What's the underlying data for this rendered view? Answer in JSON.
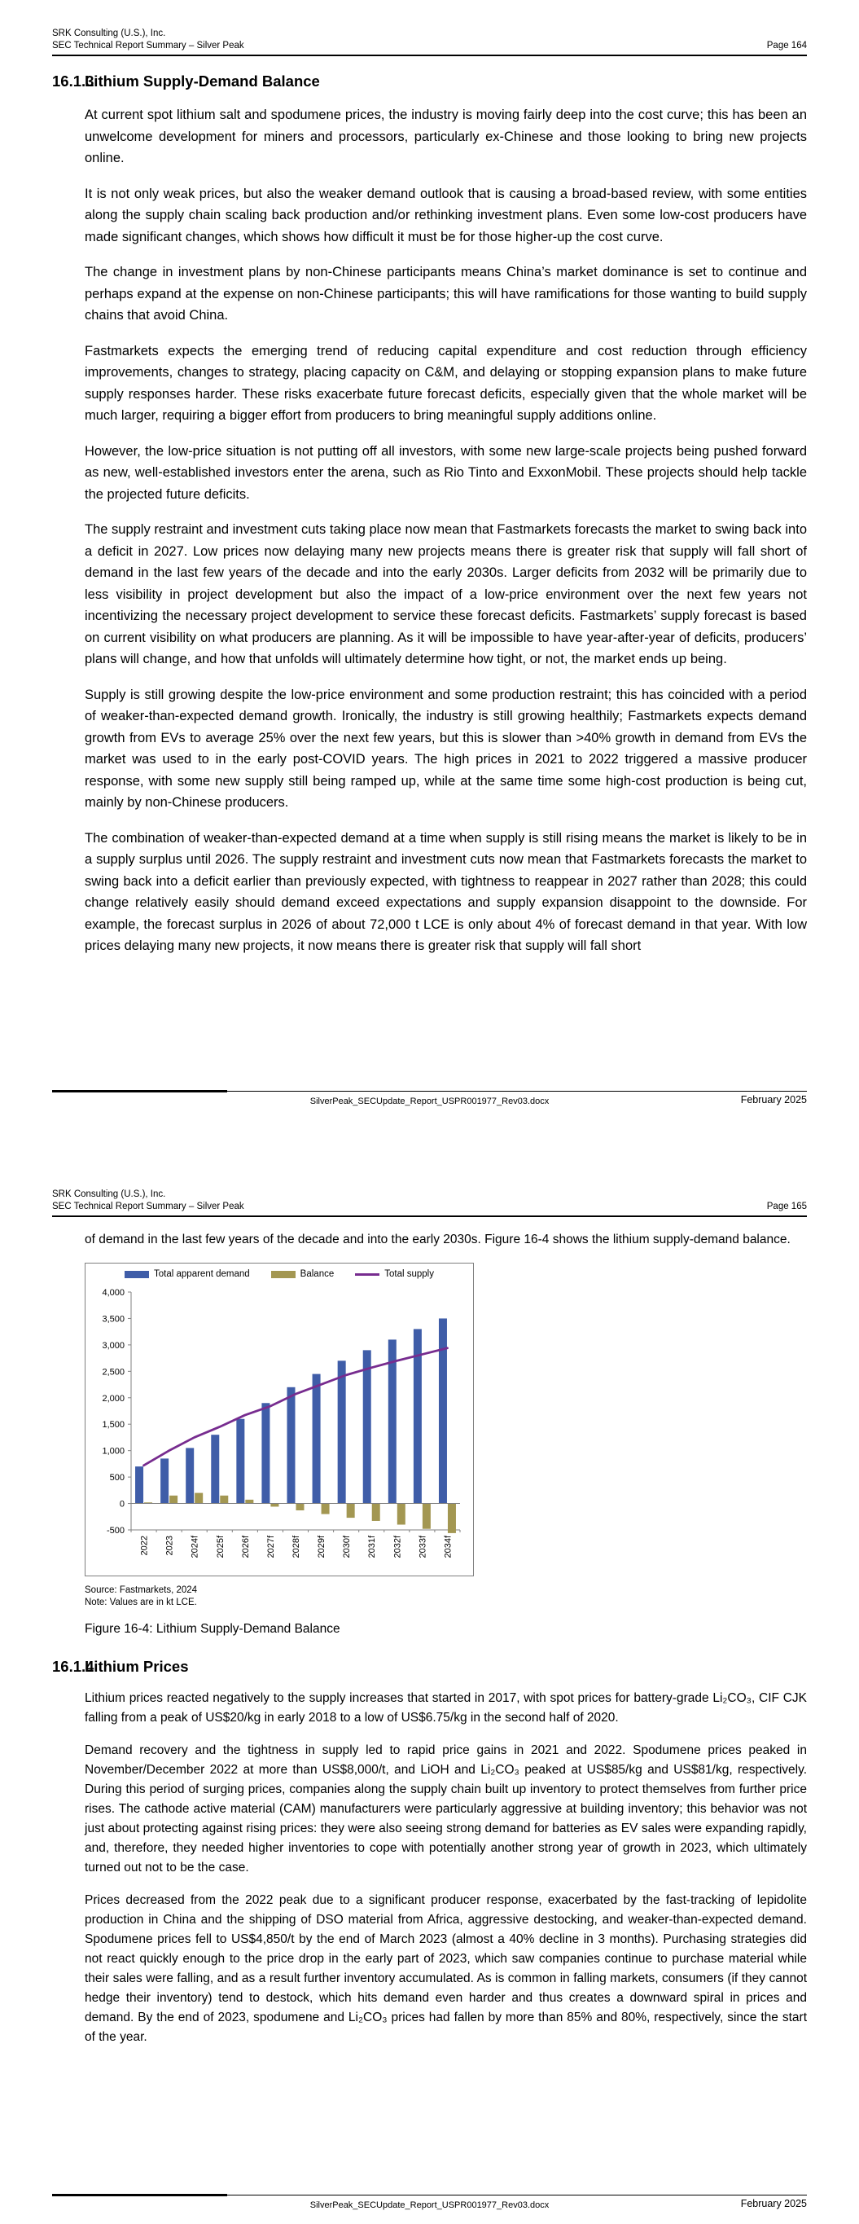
{
  "doc": {
    "header": {
      "company": "SRK Consulting (U.S.), Inc.",
      "report": "SEC Technical Report Summary – Silver Peak"
    },
    "footer": {
      "filename": "SilverPeak_SECUpdate_Report_USPR001977_Rev03.docx",
      "date": "February 2025"
    }
  },
  "page164": {
    "page_label": "Page 164",
    "section": {
      "number": "16.1.3",
      "title": "Lithium Supply-Demand Balance"
    },
    "paragraphs": [
      "At current spot lithium salt and spodumene prices, the industry is moving fairly deep into the cost curve; this has been an unwelcome development for miners and processors, particularly ex-Chinese and those looking to bring new projects online.",
      "It is not only weak prices, but also the weaker demand outlook that is causing a broad-based review, with some entities along the supply chain scaling back production and/or rethinking investment plans. Even some low-cost producers have made significant changes, which shows how difficult it must be for those higher-up the cost curve.",
      "The change in investment plans by non-Chinese participants means China’s market dominance is set to continue and perhaps expand at the expense on non-Chinese participants; this will have ramifications for those wanting to build supply chains that avoid China.",
      "Fastmarkets expects the emerging trend of reducing capital expenditure and cost reduction through efficiency improvements, changes to strategy, placing capacity on C&M, and delaying or stopping expansion plans to make future supply responses harder. These risks exacerbate future forecast deficits, especially given that the whole market will be much larger, requiring a bigger effort from producers to bring meaningful supply additions online.",
      "However, the low-price situation is not putting off all investors, with some new large-scale projects being pushed forward as new, well-established investors enter the arena, such as Rio Tinto and ExxonMobil. These projects should help tackle the projected future deficits.",
      "The supply restraint and investment cuts taking place now mean that Fastmarkets forecasts the market to swing back into a deficit in 2027. Low prices now delaying many new projects means there is greater risk that supply will fall short of demand in the last few years of the decade and into the early 2030s. Larger deficits from 2032 will be primarily due to less visibility in project development but also the impact of a low-price environment over the next few years not incentivizing the necessary project development to service these forecast deficits. Fastmarkets’ supply forecast is based on current visibility on what producers are planning. As it will be impossible to have year-after-year of deficits, producers’ plans will change, and how that unfolds will ultimately determine how tight, or not, the market ends up being.",
      "Supply is still growing despite the low-price environment and some production restraint; this has coincided with a period of weaker-than-expected demand growth. Ironically, the industry is still growing healthily; Fastmarkets expects demand growth from EVs to average 25% over the next few years, but this is slower than >40% growth in demand from EVs the market was used to in the early post-COVID years. The high prices in 2021 to 2022 triggered a massive producer response, with some new supply still being ramped up, while at the same time some high-cost production is being cut, mainly by non-Chinese producers.",
      "The combination of weaker-than-expected demand at a time when supply is still rising means the market is likely to be in a supply surplus until 2026. The supply restraint and investment cuts now mean that Fastmarkets forecasts the market to swing back into a deficit earlier than previously expected, with tightness to reappear in 2027 rather than 2028; this could change relatively easily should demand exceed expectations and supply expansion disappoint to the downside. For example, the forecast surplus in 2026 of about 72,000 t LCE is only about 4% of forecast demand in that year. With low prices delaying many new projects, it now means there is greater risk that supply will fall short"
    ]
  },
  "page165": {
    "page_label": "Page 165",
    "intro": "of demand in the last few years of the decade and into the early 2030s. Figure 16-4 shows the lithium supply-demand balance.",
    "figure": {
      "source": "Source: Fastmarkets, 2024",
      "note": "Note: Values are in kt LCE.",
      "caption": "Figure 16-4: Lithium Supply-Demand Balance"
    },
    "section": {
      "number": "16.1.4",
      "title": "Lithium Prices"
    },
    "paragraphs": [
      "Lithium prices reacted negatively to the supply increases that started in 2017, with spot prices for battery-grade Li₂CO₃, CIF CJK falling from a peak of US$20/kg in early 2018 to a low of US$6.75/kg in the second half of 2020.",
      "Demand recovery and the tightness in supply led to rapid price gains in 2021 and 2022. Spodumene prices peaked in November/December 2022 at more than US$8,000/t, and LiOH and Li₂CO₃ peaked at US$85/kg and US$81/kg, respectively. During this period of surging prices, companies along the supply chain built up inventory to protect themselves from further price rises. The cathode active material (CAM) manufacturers were particularly aggressive at building inventory; this behavior was not just about protecting against rising prices: they were also seeing strong demand for batteries as EV sales were expanding rapidly, and, therefore, they needed higher inventories to cope with potentially another strong year of growth in 2023, which ultimately turned out not to be the case.",
      "Prices decreased from the 2022 peak due to a significant producer response, exacerbated by the fast-tracking of lepidolite production in China and the shipping of DSO material from Africa, aggressive destocking, and weaker-than-expected demand. Spodumene prices fell to US$4,850/t by the end of March 2023 (almost a 40% decline in 3 months). Purchasing strategies did not react quickly enough to the price drop in the early part of 2023, which saw companies continue to purchase material while their sales were falling, and as a result further inventory accumulated. As is common in falling markets, consumers (if they cannot hedge their inventory) tend to destock, which hits demand even harder and thus creates a downward spiral in prices and demand. By the end of 2023, spodumene and Li₂CO₃ prices had fallen by more than 85% and 80%, respectively, since the start of the year."
    ]
  },
  "chart_data": {
    "type": "bar",
    "subtype": "clustered bars with overlaid line",
    "title": "Lithium Supply-Demand Balance",
    "unit": "kt LCE",
    "categories": [
      "2022",
      "2023",
      "2024f",
      "2025f",
      "2026f",
      "2027f",
      "2028f",
      "2029f",
      "2030f",
      "2031f",
      "2032f",
      "2033f",
      "2034f"
    ],
    "series": [
      {
        "name": "Total apparent demand",
        "type": "bar",
        "color": "#3F5DA8",
        "values": [
          700,
          850,
          1050,
          1300,
          1600,
          1900,
          2200,
          2450,
          2700,
          2900,
          3100,
          3300,
          3500
        ]
      },
      {
        "name": "Balance",
        "type": "bar",
        "color": "#A39752",
        "values": [
          20,
          150,
          200,
          150,
          72,
          -60,
          -130,
          -200,
          -270,
          -330,
          -400,
          -480,
          -560
        ]
      },
      {
        "name": "Total supply",
        "type": "line",
        "color": "#772C8F",
        "values": [
          720,
          1000,
          1250,
          1450,
          1672,
          1840,
          2070,
          2250,
          2430,
          2570,
          2700,
          2820,
          2940
        ]
      }
    ],
    "xlabel": "",
    "ylabel": "",
    "ylim": [
      -500,
      4000
    ],
    "ytick_step": 500,
    "grid": false,
    "legend_position": "top"
  }
}
